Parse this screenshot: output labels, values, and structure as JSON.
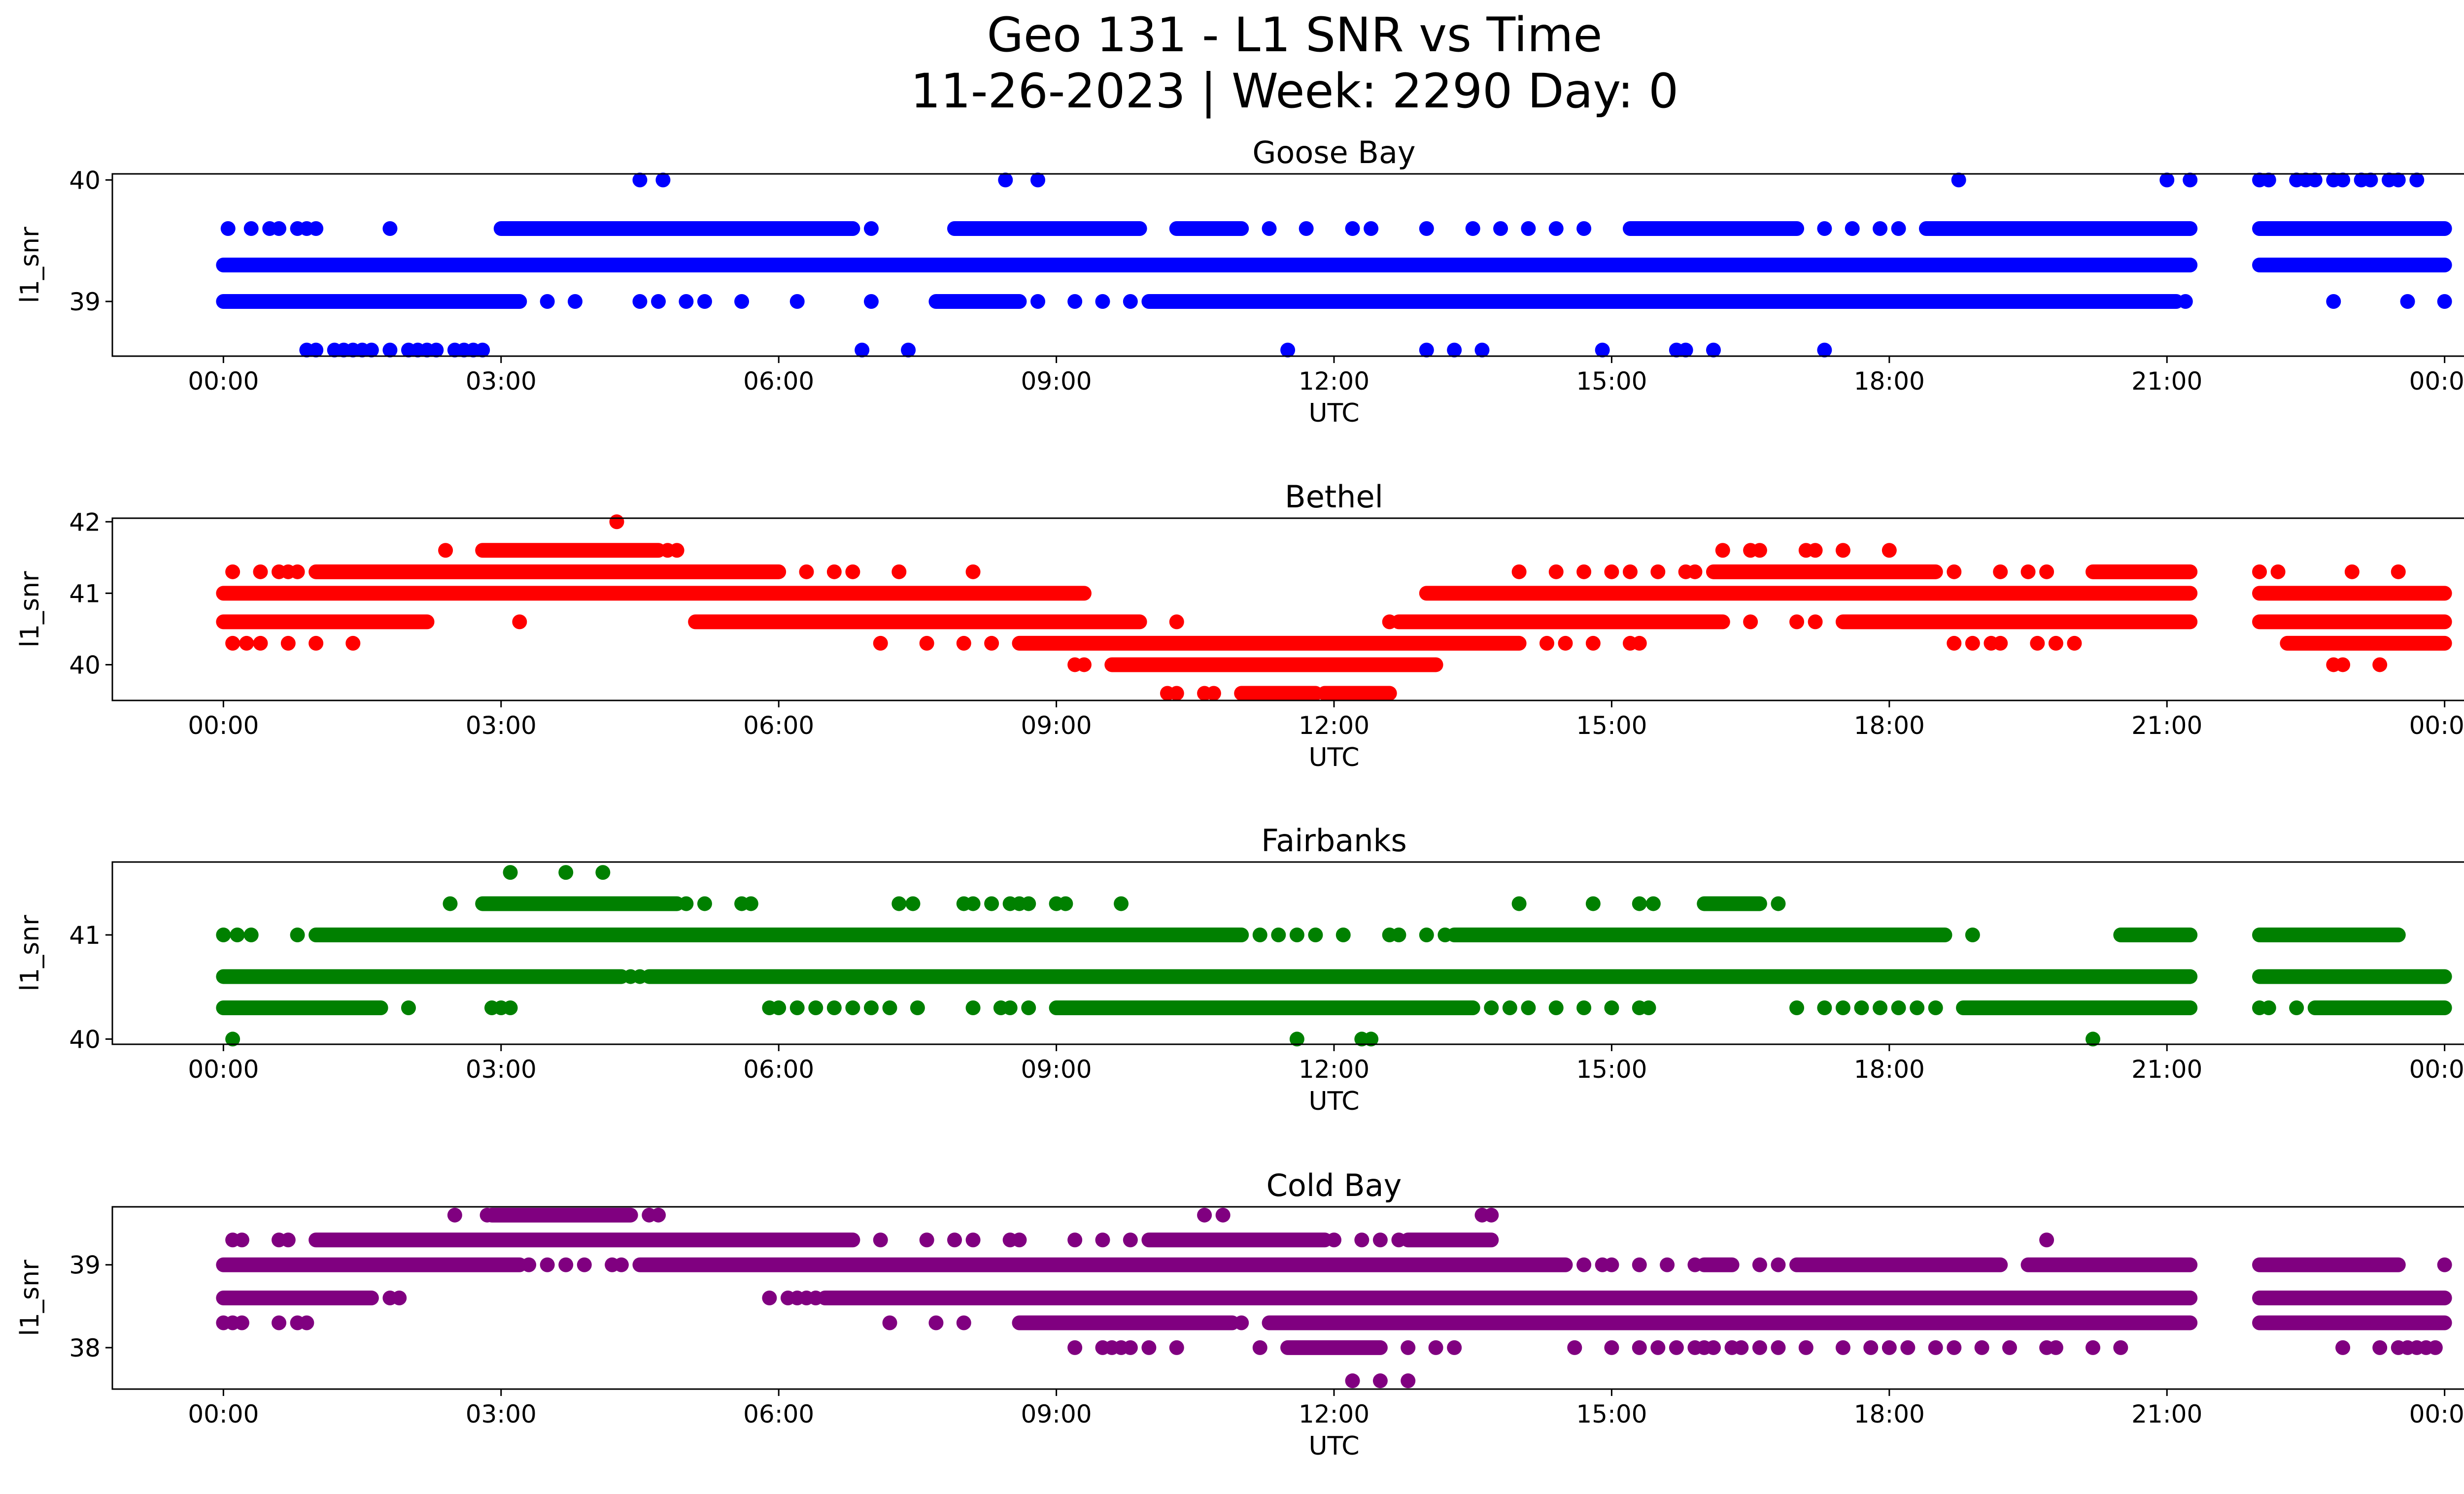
{
  "figure": {
    "title_line1": "Geo 131 - L1 SNR vs Time",
    "title_line2": "11-26-2023 | Week: 2290 Day: 0"
  },
  "chart_data": [
    {
      "type": "scatter",
      "title": "Goose Bay",
      "xlabel": "UTC",
      "ylabel": "l1_snr",
      "color": "#0000ff",
      "ylim": [
        38.55,
        40.05
      ],
      "yticks": [
        39,
        40
      ],
      "xticks": [
        "00:00",
        "03:00",
        "06:00",
        "09:00",
        "12:00",
        "15:00",
        "18:00",
        "21:00",
        "00:00"
      ],
      "xlim_hours": [
        -1.2,
        25.2
      ],
      "series": [
        {
          "y": 39.3,
          "ranges": [
            [
              0.0,
              21.25
            ],
            [
              22.0,
              24.0
            ]
          ]
        },
        {
          "y": 39.0,
          "ranges": [
            [
              0.0,
              3.2
            ],
            [
              7.7,
              8.6
            ],
            [
              10.0,
              21.1
            ]
          ],
          "points": [
            3.5,
            3.8,
            4.5,
            4.7,
            5.0,
            5.2,
            5.6,
            6.2,
            7.0,
            8.8,
            9.2,
            9.5,
            9.8,
            21.2,
            22.8,
            23.6,
            24.0
          ]
        },
        {
          "y": 39.6,
          "ranges": [
            [
              3.0,
              6.8
            ],
            [
              7.9,
              9.9
            ],
            [
              10.3,
              11.0
            ],
            [
              15.2,
              17.0
            ],
            [
              18.4,
              21.25
            ],
            [
              22.0,
              24.0
            ]
          ],
          "points": [
            0.05,
            0.3,
            0.5,
            0.6,
            0.8,
            0.9,
            1.0,
            1.8,
            7.0,
            11.3,
            11.7,
            12.2,
            12.4,
            13.0,
            13.5,
            13.8,
            14.1,
            14.4,
            14.7,
            17.3,
            17.6,
            17.9,
            18.1
          ]
        },
        {
          "y": 40.0,
          "points": [
            4.5,
            4.75,
            8.45,
            8.8,
            18.75,
            21.0,
            21.25,
            22.0,
            22.1,
            22.4,
            22.5,
            22.6,
            22.8,
            22.9,
            23.1,
            23.2,
            23.4,
            23.5,
            23.7
          ]
        },
        {
          "y": 38.6,
          "points": [
            0.9,
            1.0,
            1.2,
            1.3,
            1.4,
            1.5,
            1.6,
            1.8,
            2.0,
            2.1,
            2.2,
            2.3,
            2.5,
            2.6,
            2.7,
            2.8,
            6.9,
            7.4,
            11.5,
            13.0,
            13.3,
            13.6,
            14.9,
            15.7,
            15.8,
            16.1,
            17.3
          ]
        }
      ]
    },
    {
      "type": "scatter",
      "title": "Bethel",
      "xlabel": "UTC",
      "ylabel": "l1_snr",
      "color": "#ff0000",
      "ylim": [
        39.5,
        42.05
      ],
      "yticks": [
        40,
        41,
        42
      ],
      "xticks": [
        "00:00",
        "03:00",
        "06:00",
        "09:00",
        "12:00",
        "15:00",
        "18:00",
        "21:00",
        "00:00"
      ],
      "xlim_hours": [
        -1.2,
        25.2
      ],
      "series": [
        {
          "y": 41.0,
          "ranges": [
            [
              0.0,
              9.3
            ],
            [
              13.0,
              21.25
            ],
            [
              22.0,
              24.0
            ]
          ]
        },
        {
          "y": 40.6,
          "ranges": [
            [
              0.0,
              2.2
            ],
            [
              5.1,
              9.9
            ],
            [
              12.7,
              16.2
            ],
            [
              17.5,
              21.25
            ],
            [
              22.0,
              24.0
            ]
          ],
          "points": [
            3.2,
            10.3,
            12.6,
            16.5,
            17.0,
            17.2
          ]
        },
        {
          "y": 41.3,
          "ranges": [
            [
              1.0,
              6.0
            ],
            [
              16.1,
              18.5
            ],
            [
              20.2,
              21.25
            ]
          ],
          "points": [
            0.1,
            0.4,
            0.6,
            0.7,
            0.8,
            6.3,
            6.6,
            6.8,
            7.3,
            8.1,
            14.0,
            14.4,
            14.7,
            15.0,
            15.2,
            15.5,
            15.8,
            15.9,
            18.7,
            19.2,
            19.5,
            19.7,
            22.0,
            22.2,
            23.0,
            23.5
          ]
        },
        {
          "y": 41.6,
          "ranges": [
            [
              2.8,
              4.7
            ]
          ],
          "points": [
            2.4,
            4.8,
            4.9,
            16.2,
            16.5,
            16.6,
            17.1,
            17.2,
            17.5,
            18.0
          ]
        },
        {
          "y": 42.0,
          "points": [
            4.25
          ]
        },
        {
          "y": 40.3,
          "ranges": [
            [
              8.6,
              14.0
            ],
            [
              22.3,
              24.0
            ]
          ],
          "points": [
            0.1,
            0.25,
            0.4,
            0.7,
            1.0,
            1.4,
            7.1,
            7.6,
            8.0,
            8.3,
            14.3,
            14.5,
            14.8,
            15.2,
            15.3,
            18.7,
            18.9,
            19.1,
            19.2,
            19.6,
            19.8,
            20.0
          ]
        },
        {
          "y": 40.0,
          "ranges": [
            [
              9.6,
              13.1
            ]
          ],
          "points": [
            9.2,
            9.3,
            22.8,
            22.9,
            23.3
          ]
        },
        {
          "y": 39.6,
          "ranges": [
            [
              11.0,
              11.8
            ],
            [
              11.9,
              12.6
            ]
          ],
          "points": [
            10.2,
            10.3,
            10.6,
            10.7
          ]
        }
      ]
    },
    {
      "type": "scatter",
      "title": "Fairbanks",
      "xlabel": "UTC",
      "ylabel": "l1_snr",
      "color": "#008000",
      "ylim": [
        39.95,
        41.7
      ],
      "yticks": [
        40,
        41
      ],
      "xticks": [
        "00:00",
        "03:00",
        "06:00",
        "09:00",
        "12:00",
        "15:00",
        "18:00",
        "21:00",
        "00:00"
      ],
      "xlim_hours": [
        -1.2,
        25.2
      ],
      "series": [
        {
          "y": 40.6,
          "ranges": [
            [
              0.0,
              4.3
            ],
            [
              4.6,
              21.25
            ],
            [
              22.0,
              24.0
            ]
          ],
          "points": [
            4.4,
            4.5
          ]
        },
        {
          "y": 41.0,
          "ranges": [
            [
              1.0,
              11.0
            ],
            [
              13.3,
              18.6
            ],
            [
              20.5,
              21.25
            ],
            [
              22.0,
              23.5
            ]
          ],
          "points": [
            0.0,
            0.15,
            0.3,
            0.8,
            11.2,
            11.4,
            11.6,
            11.8,
            12.1,
            12.6,
            12.7,
            13.0,
            13.2,
            18.9
          ]
        },
        {
          "y": 40.3,
          "ranges": [
            [
              0.0,
              1.7
            ],
            [
              9.0,
              13.5
            ],
            [
              18.8,
              21.25
            ],
            [
              22.6,
              24.0
            ]
          ],
          "points": [
            2.0,
            2.9,
            3.0,
            3.1,
            5.9,
            6.0,
            6.2,
            6.4,
            6.6,
            6.8,
            7.0,
            7.2,
            7.5,
            8.1,
            8.4,
            8.5,
            8.7,
            13.7,
            13.9,
            14.1,
            14.4,
            14.7,
            15.0,
            15.3,
            15.4,
            17.0,
            17.3,
            17.5,
            17.7,
            17.9,
            18.1,
            18.3,
            18.5,
            22.0,
            22.1,
            22.4
          ]
        },
        {
          "y": 41.3,
          "ranges": [
            [
              2.8,
              4.9
            ],
            [
              16.0,
              16.6
            ]
          ],
          "points": [
            2.45,
            5.0,
            5.2,
            5.6,
            5.7,
            7.3,
            7.45,
            8.0,
            8.1,
            8.3,
            8.5,
            8.6,
            8.7,
            9.0,
            9.1,
            9.7,
            14.0,
            14.8,
            15.3,
            15.45,
            16.8
          ]
        },
        {
          "y": 41.6,
          "points": [
            3.1,
            3.7,
            4.1
          ]
        },
        {
          "y": 40.0,
          "points": [
            0.1,
            11.6,
            12.3,
            12.4,
            20.2
          ]
        }
      ]
    },
    {
      "type": "scatter",
      "title": "Cold Bay",
      "xlabel": "UTC",
      "ylabel": "l1_snr",
      "color": "#800080",
      "ylim": [
        37.5,
        39.7
      ],
      "yticks": [
        38,
        39
      ],
      "xticks": [
        "00:00",
        "03:00",
        "06:00",
        "09:00",
        "12:00",
        "15:00",
        "18:00",
        "21:00",
        "00:00"
      ],
      "xlim_hours": [
        -1.2,
        25.2
      ],
      "series": [
        {
          "y": 39.0,
          "ranges": [
            [
              0.0,
              3.2
            ],
            [
              4.5,
              14.5
            ],
            [
              16.0,
              16.3
            ],
            [
              17.0,
              19.2
            ],
            [
              19.5,
              21.25
            ],
            [
              22.0,
              23.5
            ]
          ],
          "points": [
            3.3,
            3.5,
            3.7,
            3.9,
            4.2,
            4.3,
            14.7,
            14.9,
            15.0,
            15.3,
            15.6,
            15.9,
            16.6,
            16.8,
            24.0
          ]
        },
        {
          "y": 38.6,
          "ranges": [
            [
              0.0,
              1.6
            ],
            [
              6.5,
              21.25
            ],
            [
              22.0,
              24.0
            ]
          ],
          "points": [
            1.8,
            1.9,
            5.9,
            6.1,
            6.2,
            6.3,
            6.4
          ]
        },
        {
          "y": 38.3,
          "ranges": [
            [
              8.6,
              10.9
            ],
            [
              11.3,
              14.9
            ],
            [
              14.9,
              21.25
            ],
            [
              22.0,
              24.0
            ]
          ],
          "points": [
            0.0,
            0.1,
            0.2,
            0.6,
            0.8,
            0.9,
            7.2,
            7.7,
            8.0,
            11.0
          ]
        },
        {
          "y": 39.3,
          "ranges": [
            [
              1.0,
              6.8
            ],
            [
              10.0,
              11.9
            ],
            [
              12.8,
              13.7
            ]
          ],
          "points": [
            0.1,
            0.2,
            0.6,
            0.7,
            7.1,
            7.6,
            7.9,
            8.1,
            8.5,
            8.6,
            9.2,
            9.5,
            9.8,
            12.0,
            12.3,
            12.5,
            12.7,
            19.7
          ]
        },
        {
          "y": 39.6,
          "ranges": [
            [
              2.9,
              4.4
            ]
          ],
          "points": [
            2.5,
            2.85,
            4.6,
            4.7,
            10.6,
            10.8,
            13.6,
            13.7
          ]
        },
        {
          "y": 38.0,
          "ranges": [
            [
              11.5,
              12.5
            ]
          ],
          "points": [
            9.2,
            9.5,
            9.6,
            9.7,
            9.8,
            10.0,
            10.3,
            11.2,
            12.8,
            13.1,
            13.3,
            14.6,
            15.0,
            15.3,
            15.5,
            15.7,
            15.9,
            16.0,
            16.1,
            16.3,
            16.4,
            16.6,
            16.8,
            17.1,
            17.5,
            17.8,
            18.0,
            18.2,
            18.5,
            18.7,
            19.0,
            19.3,
            19.7,
            19.8,
            20.2,
            20.5,
            22.9,
            23.3,
            23.5,
            23.6,
            23.7,
            23.8,
            23.9
          ]
        },
        {
          "y": 37.6,
          "points": [
            12.2,
            12.5,
            12.8
          ]
        }
      ]
    }
  ]
}
